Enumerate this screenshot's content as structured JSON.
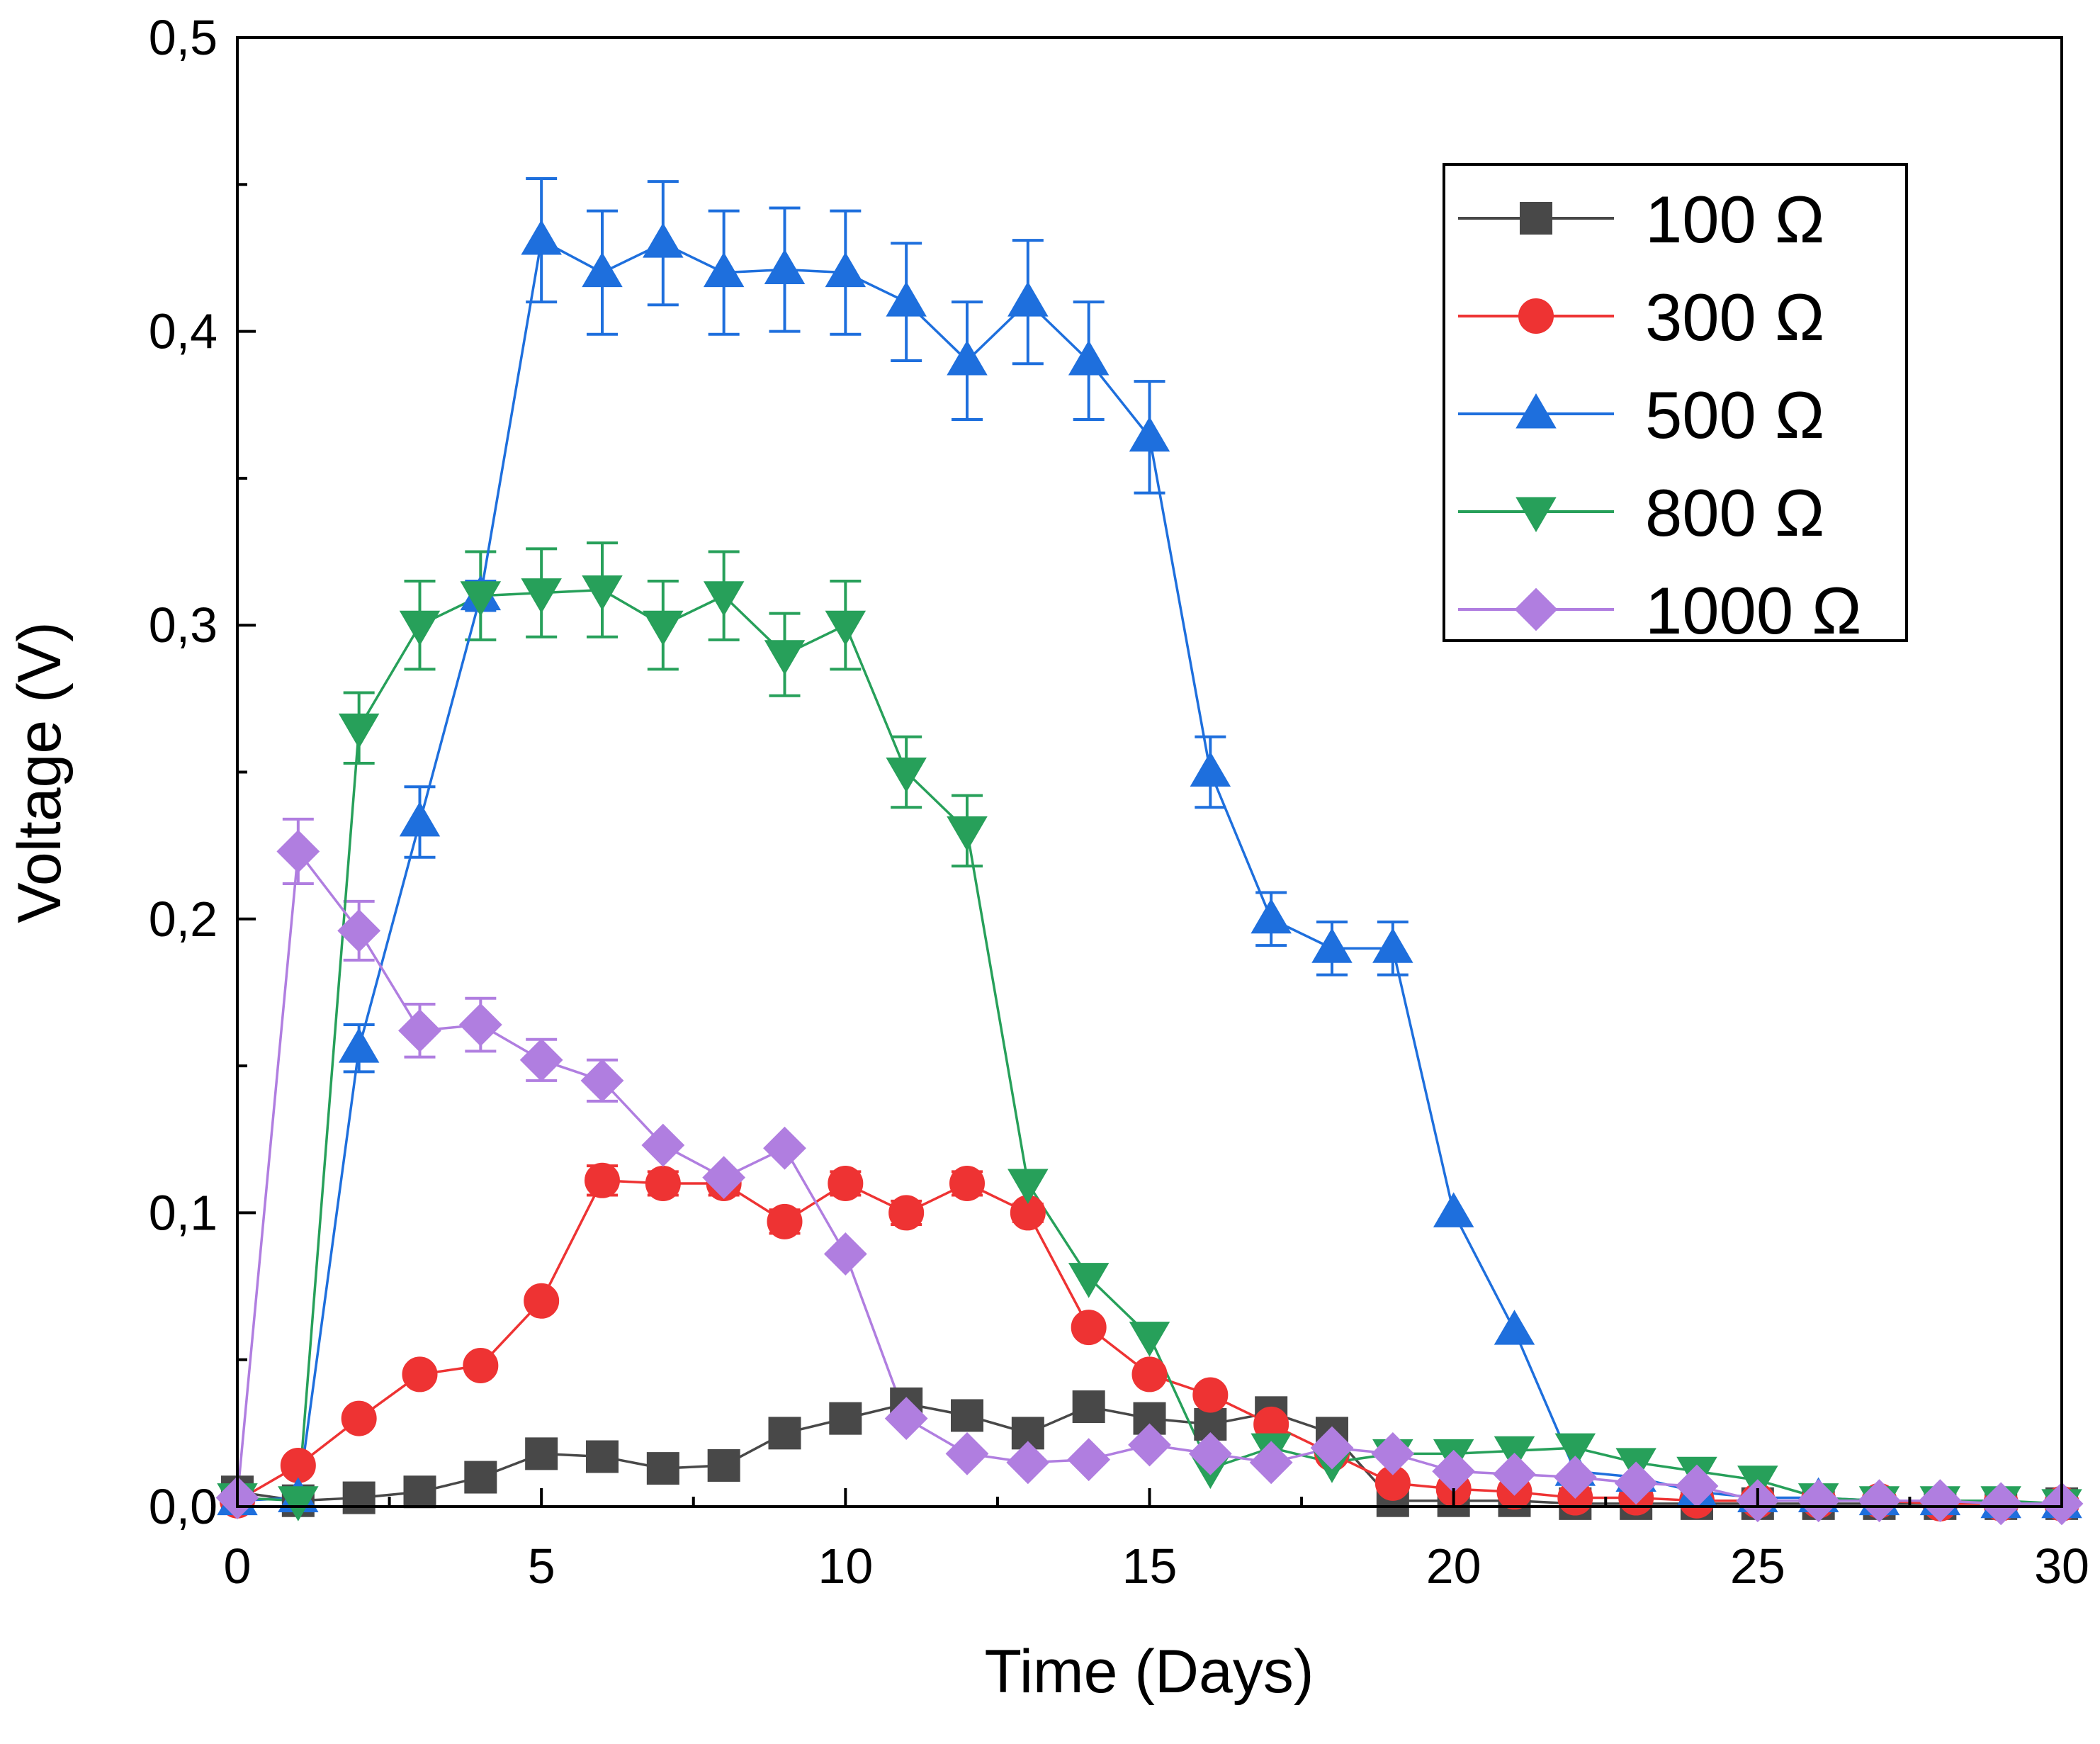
{
  "chart_data": {
    "type": "line",
    "title": "",
    "xlabel": "Time (Days)",
    "ylabel": "Voltage (V)",
    "xlim": [
      0,
      30
    ],
    "ylim": [
      0,
      0.5
    ],
    "x_ticks": [
      0,
      5,
      10,
      15,
      20,
      25,
      30
    ],
    "x_tick_labels": [
      "0",
      "5",
      "10",
      "15",
      "20",
      "25",
      "30"
    ],
    "y_ticks": [
      0,
      0.1,
      0.2,
      0.3,
      0.4,
      0.5
    ],
    "y_tick_labels": [
      "0,0",
      "0,1",
      "0,2",
      "0,3",
      "0,4",
      "0,5"
    ],
    "grid": false,
    "legend_position": "top-right",
    "x": [
      0,
      1,
      2,
      3,
      4,
      5,
      6,
      7,
      8,
      9,
      10,
      11,
      12,
      13,
      14,
      15,
      16,
      17,
      18,
      19,
      20,
      21,
      22,
      23,
      24,
      25,
      26,
      27,
      28,
      29,
      30
    ],
    "series": [
      {
        "name": "100 Ω",
        "color": "#484848",
        "marker": "square",
        "values": [
          0.005,
          0.002,
          0.003,
          0.005,
          0.01,
          0.018,
          0.017,
          0.013,
          0.014,
          0.025,
          0.03,
          0.035,
          0.031,
          0.025,
          0.034,
          0.03,
          0.028,
          0.032,
          0.025,
          0.002,
          0.002,
          0.002,
          0.001,
          0.001,
          0.001,
          0.001,
          0.001,
          0.001,
          0.001,
          0.001,
          0.001
        ]
      },
      {
        "name": "300 Ω",
        "color": "#ee3333",
        "marker": "circle",
        "values": [
          0.002,
          0.014,
          0.03,
          0.045,
          0.048,
          0.07,
          0.111,
          0.11,
          0.11,
          0.097,
          0.11,
          0.1,
          0.11,
          0.1,
          0.061,
          0.045,
          0.038,
          0.028,
          0.018,
          0.008,
          0.006,
          0.005,
          0.003,
          0.003,
          0.002,
          0.002,
          0.002,
          0.002,
          0.001,
          0.001,
          0.001
        ],
        "errors": [
          0,
          0,
          0,
          0,
          0,
          0,
          0.005,
          0.004,
          0.004,
          0.004,
          0.004,
          0.004,
          0.004,
          0.003,
          0,
          0,
          0,
          0,
          0,
          0,
          0,
          0,
          0,
          0,
          0,
          0,
          0,
          0,
          0,
          0,
          0
        ]
      },
      {
        "name": "500 Ω",
        "color": "#1e6fdd",
        "marker": "triangle-up",
        "values": [
          0.002,
          0.003,
          0.156,
          0.233,
          0.31,
          0.431,
          0.42,
          0.43,
          0.42,
          0.421,
          0.42,
          0.41,
          0.39,
          0.41,
          0.39,
          0.364,
          0.25,
          0.2,
          0.19,
          0.19,
          0.1,
          0.06,
          0.012,
          0.01,
          0.005,
          0.003,
          0.003,
          0.002,
          0.002,
          0.001,
          0.001
        ],
        "errors": [
          0,
          0,
          0.008,
          0.012,
          0.005,
          0.021,
          0.021,
          0.021,
          0.021,
          0.021,
          0.021,
          0.02,
          0.02,
          0.021,
          0.02,
          0.019,
          0.012,
          0.009,
          0.009,
          0.009,
          0,
          0,
          0,
          0,
          0,
          0,
          0,
          0,
          0,
          0,
          0
        ]
      },
      {
        "name": "800 Ω",
        "color": "#27a05a",
        "marker": "triangle-down",
        "values": [
          0.003,
          0.002,
          0.265,
          0.3,
          0.31,
          0.311,
          0.312,
          0.3,
          0.31,
          0.29,
          0.3,
          0.25,
          0.23,
          0.11,
          0.078,
          0.058,
          0.013,
          0.02,
          0.015,
          0.018,
          0.018,
          0.019,
          0.02,
          0.015,
          0.012,
          0.009,
          0.003,
          0.002,
          0.002,
          0.002,
          0.001
        ],
        "errors": [
          0,
          0,
          0.012,
          0.015,
          0.015,
          0.015,
          0.016,
          0.015,
          0.015,
          0.014,
          0.015,
          0.012,
          0.012,
          0,
          0,
          0,
          0,
          0,
          0,
          0,
          0,
          0,
          0,
          0,
          0,
          0,
          0,
          0,
          0,
          0,
          0
        ]
      },
      {
        "name": "1000 Ω",
        "color": "#b07ee0",
        "marker": "diamond",
        "values": [
          0.003,
          0.223,
          0.196,
          0.162,
          0.164,
          0.152,
          0.145,
          0.123,
          0.112,
          0.122,
          0.086,
          0.03,
          0.018,
          0.015,
          0.016,
          0.021,
          0.018,
          0.015,
          0.02,
          0.018,
          0.012,
          0.011,
          0.01,
          0.008,
          0.007,
          0.002,
          0.002,
          0.002,
          0.002,
          0.001,
          0.001
        ],
        "errors": [
          0,
          0.011,
          0.01,
          0.009,
          0.009,
          0.007,
          0.007,
          0,
          0,
          0,
          0,
          0,
          0,
          0,
          0,
          0,
          0,
          0,
          0,
          0,
          0,
          0,
          0,
          0,
          0,
          0,
          0,
          0,
          0,
          0,
          0
        ]
      }
    ]
  }
}
